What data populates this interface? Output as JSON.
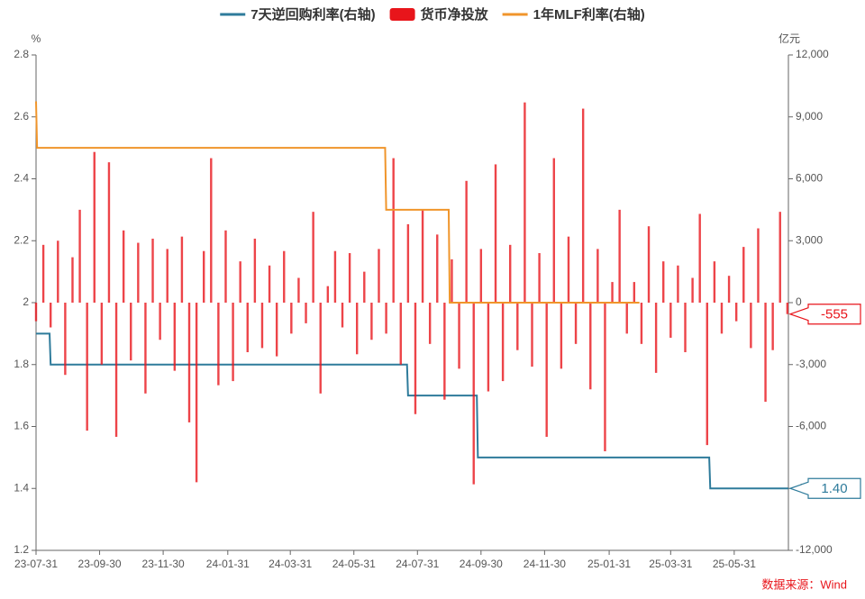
{
  "chart_data": {
    "type": "combo",
    "left_unit": "%",
    "right_unit": "亿元",
    "source": "数据来源：Wind",
    "xlim": [
      "23-07-31",
      "25-07-22"
    ],
    "xticks": [
      "23-07-31",
      "23-09-30",
      "23-11-30",
      "24-01-31",
      "24-03-31",
      "24-05-31",
      "24-07-31",
      "24-09-30",
      "24-11-30",
      "25-01-31",
      "25-03-31",
      "25-05-31"
    ],
    "ylim": [
      1.2,
      2.8
    ],
    "yticks": [
      1.2,
      1.4,
      1.6,
      1.8,
      2,
      2.2,
      2.4,
      2.6,
      2.8
    ],
    "y2lim": [
      -12000,
      12000
    ],
    "y2ticks": [
      {
        "value": -12000,
        "label": "-12,000"
      },
      {
        "value": -9000,
        "label": "-9,000"
      },
      {
        "value": -6000,
        "label": "-6,000"
      },
      {
        "value": -3000,
        "label": "-3,000"
      },
      0,
      {
        "value": 3000,
        "label": "3,000"
      },
      {
        "value": 6000,
        "label": "6,000"
      },
      {
        "value": 9000,
        "label": "9,000"
      },
      {
        "value": 12000,
        "label": "12,000"
      }
    ],
    "series": [
      {
        "name": "7天逆回购利率(右轴)",
        "type": "line",
        "color": "#2e7b9b",
        "x": [
          "23-07-31",
          "23-08-13",
          "23-08-14",
          "24-07-21",
          "24-07-22",
          "24-09-26",
          "24-09-27",
          "25-05-07",
          "25-05-08",
          "25-07-22"
        ],
        "values": [
          1.9,
          1.9,
          1.8,
          1.8,
          1.7,
          1.7,
          1.5,
          1.5,
          1.4,
          1.4
        ],
        "value_labels": [
          null,
          null,
          null,
          null,
          null,
          null,
          null,
          null,
          null,
          "1.40"
        ]
      },
      {
        "name": "货币净投放",
        "type": "bar",
        "color": "#e8151b",
        "axis": "y2",
        "x": [
          "23-07-31",
          "23-08-07",
          "23-08-14",
          "23-08-21",
          "23-08-28",
          "23-09-04",
          "23-09-11",
          "23-09-18",
          "23-09-25",
          "23-10-02",
          "23-10-09",
          "23-10-16",
          "23-10-23",
          "23-10-30",
          "23-11-06",
          "23-11-13",
          "23-11-20",
          "23-11-27",
          "23-12-04",
          "23-12-11",
          "23-12-18",
          "23-12-25",
          "24-01-01",
          "24-01-08",
          "24-01-15",
          "24-01-22",
          "24-01-29",
          "24-02-05",
          "24-02-12",
          "24-02-19",
          "24-02-26",
          "24-03-04",
          "24-03-11",
          "24-03-18",
          "24-03-25",
          "24-04-01",
          "24-04-08",
          "24-04-15",
          "24-04-22",
          "24-04-29",
          "24-05-06",
          "24-05-13",
          "24-05-20",
          "24-05-27",
          "24-06-03",
          "24-06-10",
          "24-06-17",
          "24-06-24",
          "24-07-01",
          "24-07-08",
          "24-07-15",
          "24-07-22",
          "24-07-29",
          "24-08-05",
          "24-08-12",
          "24-08-19",
          "24-08-26",
          "24-09-02",
          "24-09-09",
          "24-09-16",
          "24-09-23",
          "24-09-30",
          "24-10-07",
          "24-10-14",
          "24-10-21",
          "24-10-28",
          "24-11-04",
          "24-11-11",
          "24-11-18",
          "24-11-25",
          "24-12-02",
          "24-12-09",
          "24-12-16",
          "24-12-23",
          "24-12-30",
          "25-01-06",
          "25-01-13",
          "25-01-20",
          "25-01-27",
          "25-02-03",
          "25-02-10",
          "25-02-17",
          "25-02-24",
          "25-03-03",
          "25-03-10",
          "25-03-17",
          "25-03-24",
          "25-03-31",
          "25-04-07",
          "25-04-14",
          "25-04-21",
          "25-04-28",
          "25-05-05",
          "25-05-12",
          "25-05-19",
          "25-05-26",
          "25-06-02",
          "25-06-09",
          "25-06-16",
          "25-06-23",
          "25-06-30",
          "25-07-07",
          "25-07-14",
          "25-07-21"
        ],
        "values": [
          -900,
          2800,
          -1200,
          3000,
          -3500,
          2200,
          4500,
          -6200,
          7300,
          -3000,
          6800,
          -6500,
          3500,
          -2800,
          2900,
          -4400,
          3100,
          -1800,
          2600,
          -3300,
          3200,
          -5800,
          -8700,
          2500,
          7000,
          -4000,
          3500,
          -3800,
          2000,
          -2400,
          3100,
          -2200,
          1800,
          -2600,
          2500,
          -1500,
          1200,
          -1000,
          4400,
          -4400,
          800,
          2500,
          -1200,
          2400,
          -2500,
          1500,
          -1800,
          2600,
          -1500,
          7000,
          -3000,
          3800,
          -5400,
          4500,
          -2000,
          3300,
          -4700,
          2100,
          -3200,
          5900,
          -8800,
          2600,
          -4300,
          6700,
          -3800,
          2800,
          -2300,
          9700,
          -3100,
          2400,
          -6500,
          7000,
          -3200,
          3200,
          -2000,
          9400,
          -4200,
          2600,
          -7200,
          1000,
          4500,
          -1500,
          1000,
          -2000,
          3700,
          -3400,
          2000,
          -1700,
          1800,
          -2400,
          1200,
          4300,
          -6900,
          2000,
          -1500,
          1300,
          -900,
          2700,
          -2200,
          3600,
          -4800,
          -2300,
          4400,
          -555
        ],
        "value_labels": [
          null,
          null,
          null,
          null,
          null,
          null,
          null,
          null,
          null,
          null,
          null,
          null,
          null,
          null,
          null,
          null,
          null,
          null,
          null,
          null,
          null,
          null,
          null,
          null,
          null,
          null,
          null,
          null,
          null,
          null,
          null,
          null,
          null,
          null,
          null,
          null,
          null,
          null,
          null,
          null,
          null,
          null,
          null,
          null,
          null,
          null,
          null,
          null,
          null,
          null,
          null,
          null,
          null,
          null,
          null,
          null,
          null,
          null,
          null,
          null,
          null,
          null,
          null,
          null,
          null,
          null,
          null,
          null,
          null,
          null,
          null,
          null,
          null,
          null,
          null,
          null,
          null,
          null,
          null,
          null,
          null,
          null,
          null,
          null,
          null,
          null,
          null,
          null,
          null,
          null,
          null,
          null,
          null,
          null,
          null,
          null,
          null,
          null,
          null,
          null,
          null,
          null,
          null,
          "-555"
        ]
      },
      {
        "name": "1年MLF利率(右轴)",
        "type": "line",
        "color": "#f0952b",
        "x": [
          "23-07-31",
          "23-08-01",
          "24-06-30",
          "24-07-01",
          "24-08-30",
          "24-08-31",
          "25-03-01"
        ],
        "values": [
          2.65,
          2.5,
          2.5,
          2.3,
          2.3,
          2,
          2
        ]
      }
    ]
  }
}
